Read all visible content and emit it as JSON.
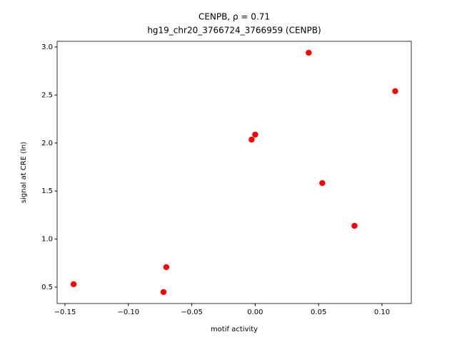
{
  "chart_data": {
    "type": "scatter",
    "title": "CENPB, ρ = 0.71",
    "subtitle": "hg19_chr20_3766724_3766959 (CENPB)",
    "x_label": "motif activity",
    "y_label": "signal at CRE (ln)",
    "color": "#ff0000",
    "x": [
      -0.1432,
      -0.0723,
      -0.0701,
      -0.0028,
      0.0,
      0.0422,
      0.0529,
      0.0783,
      0.1104
    ],
    "values": [
      0.53,
      0.448,
      0.708,
      2.036,
      2.088,
      2.94,
      1.583,
      1.138,
      2.54
    ],
    "xlim": [
      -0.1562,
      0.1231
    ],
    "ylim": [
      0.329,
      3.059
    ],
    "xticks": [
      {
        "value": -0.15,
        "label": "−0.15"
      },
      {
        "value": -0.1,
        "label": "−0.10"
      },
      {
        "value": -0.05,
        "label": "−0.05"
      },
      {
        "value": 0,
        "label": "0.00"
      },
      {
        "value": 0.05,
        "label": "0.05"
      },
      {
        "value": 0.1,
        "label": "0.10"
      }
    ],
    "yticks": [
      0.5,
      {
        "value": 1,
        "label": "1.0"
      },
      1.5,
      {
        "value": 2,
        "label": "2.0"
      },
      2.5,
      {
        "value": 3,
        "label": "3.0"
      }
    ]
  }
}
